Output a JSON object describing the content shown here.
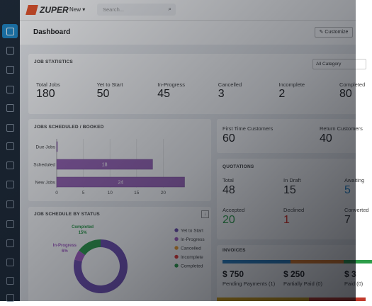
{
  "header": {
    "logo": "ZUPER",
    "new": "New",
    "search_placeholder": "Search..."
  },
  "page": {
    "title": "Dashboard",
    "customize": "Customize"
  },
  "job_statistics": {
    "title": "JOB STATISTICS",
    "filter": "All Category",
    "stats": [
      {
        "label": "Total Jobs",
        "value": 180
      },
      {
        "label": "Yet to Start",
        "value": 50
      },
      {
        "label": "In-Progress",
        "value": 45
      },
      {
        "label": "Cancelled",
        "value": 3
      },
      {
        "label": "Incomplete",
        "value": 2
      },
      {
        "label": "Completed",
        "value": 80
      }
    ]
  },
  "customers": [
    {
      "label": "First Time Customers",
      "value": 60
    },
    {
      "label": "Return Customers",
      "value": 40
    }
  ],
  "quotations": {
    "title": "QUOTATIONS",
    "items": [
      {
        "label": "Total",
        "value": 48,
        "color": "#333333"
      },
      {
        "label": "In Draft",
        "value": 15,
        "color": "#333333"
      },
      {
        "label": "Awaiting",
        "value": 5,
        "color": "#1e7fc4"
      },
      {
        "label": "Accepted",
        "value": 20,
        "color": "#2e9d4a"
      },
      {
        "label": "Declined",
        "value": 1,
        "color": "#d93025"
      },
      {
        "label": "Converted",
        "value": 7,
        "color": "#333333"
      }
    ]
  },
  "invoices": {
    "title": "INVOICES",
    "items": [
      {
        "amount": "$ 750",
        "label": "Pending Payments (1)"
      },
      {
        "amount": "$ 250",
        "label": "Partially Paid (0)"
      },
      {
        "amount": "$ 3",
        "label": "Paid (0)"
      }
    ]
  },
  "jobs_scheduled": {
    "type": "bar",
    "title": "JOBS SCHEDULED / BOOKED",
    "categories": [
      "Due Jobs",
      "Scheduled",
      "New Jobs"
    ],
    "values": [
      0,
      18,
      24
    ],
    "color": "#9b66b8",
    "xlim": [
      0,
      25
    ],
    "xticks": [
      0,
      5,
      10,
      15,
      20
    ],
    "grid": true
  },
  "job_status": {
    "type": "donut",
    "title": "JOB SCHEDULE BY STATUS",
    "categories": [
      "Yet to Start",
      "In-Progress",
      "Cancelled",
      "Incomplete",
      "Completed"
    ],
    "values": [
      79,
      6,
      0,
      0,
      15
    ],
    "value_labels": [
      null,
      "6%",
      null,
      null,
      "15%"
    ],
    "colors": [
      "#6f4fb0",
      "#a55fc4",
      "#f0a030",
      "#e53935",
      "#2e9d4a"
    ]
  }
}
